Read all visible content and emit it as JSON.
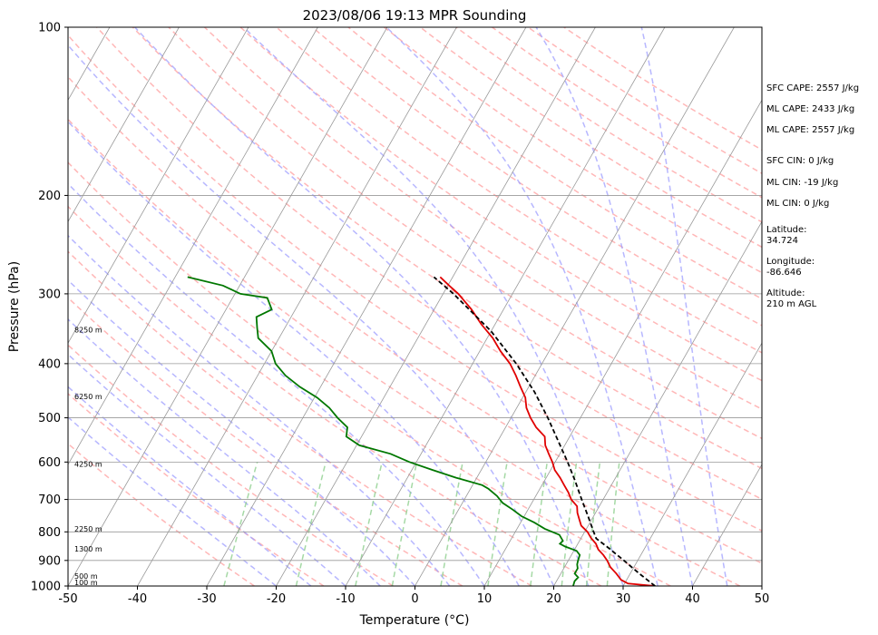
{
  "chart_data": {
    "type": "line",
    "title": "2023/08/06 19:13 MPR Sounding",
    "xlabel": "Temperature (°C)",
    "ylabel": "Pressure (hPa)",
    "xlim": [
      -50,
      50
    ],
    "ylim": [
      1000,
      100
    ],
    "y_scale": "log",
    "x_ticks": [
      -50,
      -40,
      -30,
      -20,
      -10,
      0,
      10,
      20,
      30,
      40,
      50
    ],
    "y_ticks": [
      1000,
      900,
      800,
      700,
      600,
      500,
      400,
      300,
      200,
      100
    ],
    "grid": true,
    "height_labels": [
      {
        "p": 985,
        "label": "100 m"
      },
      {
        "p": 960,
        "label": "500 m"
      },
      {
        "p": 858,
        "label": "1300 m"
      },
      {
        "p": 790,
        "label": "2250 m"
      },
      {
        "p": 605,
        "label": "4250 m"
      },
      {
        "p": 458,
        "label": "6250 m"
      },
      {
        "p": 348,
        "label": "8250 m"
      }
    ],
    "series": [
      {
        "color": "#e00000",
        "points": [
          [
            1000,
            34.6
          ],
          [
            990,
            30.5
          ],
          [
            975,
            29.2
          ],
          [
            950,
            28.0
          ],
          [
            925,
            26.6
          ],
          [
            900,
            25.6
          ],
          [
            880,
            24.6
          ],
          [
            860,
            23.4
          ],
          [
            840,
            22.6
          ],
          [
            820,
            21.4
          ],
          [
            800,
            20.4
          ],
          [
            780,
            19.0
          ],
          [
            760,
            18.2
          ],
          [
            740,
            17.4
          ],
          [
            720,
            16.8
          ],
          [
            700,
            15.4
          ],
          [
            680,
            14.4
          ],
          [
            660,
            13.2
          ],
          [
            640,
            12.0
          ],
          [
            620,
            10.6
          ],
          [
            600,
            9.6
          ],
          [
            580,
            8.4
          ],
          [
            560,
            7.2
          ],
          [
            540,
            6.4
          ],
          [
            520,
            4.4
          ],
          [
            500,
            2.8
          ],
          [
            480,
            1.4
          ],
          [
            460,
            0.4
          ],
          [
            440,
            -1.2
          ],
          [
            420,
            -2.8
          ],
          [
            400,
            -4.6
          ],
          [
            380,
            -7.0
          ],
          [
            360,
            -9.2
          ],
          [
            340,
            -12.0
          ],
          [
            320,
            -14.6
          ],
          [
            300,
            -17.8
          ],
          [
            290,
            -19.8
          ],
          [
            280,
            -21.8
          ]
        ]
      },
      {
        "color": "#007700",
        "points": [
          [
            1000,
            22.8
          ],
          [
            980,
            22.6
          ],
          [
            965,
            22.8
          ],
          [
            950,
            22.0
          ],
          [
            930,
            22.0
          ],
          [
            915,
            21.6
          ],
          [
            900,
            21.4
          ],
          [
            880,
            21.2
          ],
          [
            865,
            20.4
          ],
          [
            850,
            18.4
          ],
          [
            840,
            17.4
          ],
          [
            830,
            17.6
          ],
          [
            810,
            16.6
          ],
          [
            790,
            14.0
          ],
          [
            770,
            12.0
          ],
          [
            750,
            9.6
          ],
          [
            730,
            7.8
          ],
          [
            710,
            5.8
          ],
          [
            690,
            4.4
          ],
          [
            670,
            2.6
          ],
          [
            660,
            1.4
          ],
          [
            640,
            -3.0
          ],
          [
            620,
            -7.0
          ],
          [
            600,
            -11.0
          ],
          [
            580,
            -14.4
          ],
          [
            560,
            -19.6
          ],
          [
            540,
            -22.2
          ],
          [
            520,
            -22.8
          ],
          [
            500,
            -25.0
          ],
          [
            480,
            -27.0
          ],
          [
            460,
            -29.6
          ],
          [
            440,
            -33.0
          ],
          [
            420,
            -36.0
          ],
          [
            400,
            -38.4
          ],
          [
            380,
            -40.0
          ],
          [
            360,
            -43.0
          ],
          [
            345,
            -44.0
          ],
          [
            330,
            -45.0
          ],
          [
            320,
            -43.4
          ],
          [
            305,
            -45.0
          ],
          [
            300,
            -49.2
          ],
          [
            290,
            -52.4
          ],
          [
            280,
            -58.2
          ]
        ]
      },
      {
        "color": "#000000",
        "dashed": true,
        "points": [
          [
            1000,
            34.6
          ],
          [
            950,
            31.3
          ],
          [
            900,
            28.0
          ],
          [
            850,
            24.4
          ],
          [
            822,
            22.2
          ],
          [
            800,
            21.3
          ],
          [
            750,
            19.2
          ],
          [
            700,
            16.9
          ],
          [
            650,
            14.5
          ],
          [
            600,
            11.8
          ],
          [
            550,
            8.7
          ],
          [
            500,
            5.3
          ],
          [
            450,
            1.3
          ],
          [
            400,
            -3.7
          ],
          [
            350,
            -10.0
          ],
          [
            300,
            -18.5
          ],
          [
            280,
            -22.7
          ]
        ]
      }
    ]
  },
  "side_panel": {
    "sfc_cape": "SFC CAPE: 2557 J/kg",
    "ml_cape_1": "ML CAPE: 2433 J/kg",
    "ml_cape_2": "ML CAPE: 2557 J/kg",
    "sfc_cin": "SFC CIN: 0 J/kg",
    "ml_cin_1": "ML CIN: -19 J/kg",
    "ml_cin_2": "ML CIN: 0 J/kg",
    "latitude_label": "Latitude:",
    "latitude_value": "34.724",
    "longitude_label": "Longitude:",
    "longitude_value": "-86.646",
    "altitude_label": "Altitude:",
    "altitude_value": "210 m AGL"
  },
  "colors": {
    "temperature": "#e00000",
    "dewpoint": "#007700",
    "parcel": "#000000",
    "dry_adiabat": "#ff9f9f",
    "moist_adiabat": "#9f9fff",
    "mixing_ratio": "#8fcf8f",
    "isotherm": "#999999"
  }
}
